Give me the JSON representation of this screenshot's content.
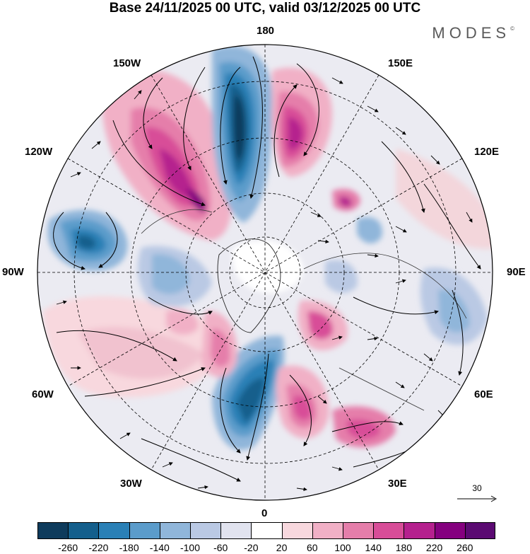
{
  "header": {
    "title": "Base 24/11/2025 00 UTC, valid 03/12/2025 00 UTC",
    "brand": "MODES",
    "brand_mark": "©"
  },
  "map": {
    "projection": "north-polar-stereographic",
    "longitude_labels": {
      "top": "180",
      "bottom": "0",
      "left": "90W",
      "right": "90E",
      "upper_left_1": "150W",
      "upper_left_2": "120W",
      "lower_left_1": "60W",
      "lower_left_2": "30W",
      "upper_right_1": "150E",
      "upper_right_2": "120E",
      "lower_right_1": "60E",
      "lower_right_2": "30E"
    },
    "reference_vector": {
      "value": "30"
    }
  },
  "legend": {
    "ticks": [
      "-260",
      "-220",
      "-180",
      "-140",
      "-100",
      "-60",
      "-20",
      "20",
      "60",
      "100",
      "140",
      "180",
      "220",
      "260"
    ],
    "colors": [
      "#0e3b5c",
      "#145f8c",
      "#2a80b6",
      "#5b9ccb",
      "#90b6da",
      "#bac9e4",
      "#e1e3ef",
      "#ffffff",
      "#f8d8de",
      "#f1b0c6",
      "#e57eaa",
      "#d84d98",
      "#b5208e",
      "#85007f",
      "#5b0a72"
    ]
  }
}
